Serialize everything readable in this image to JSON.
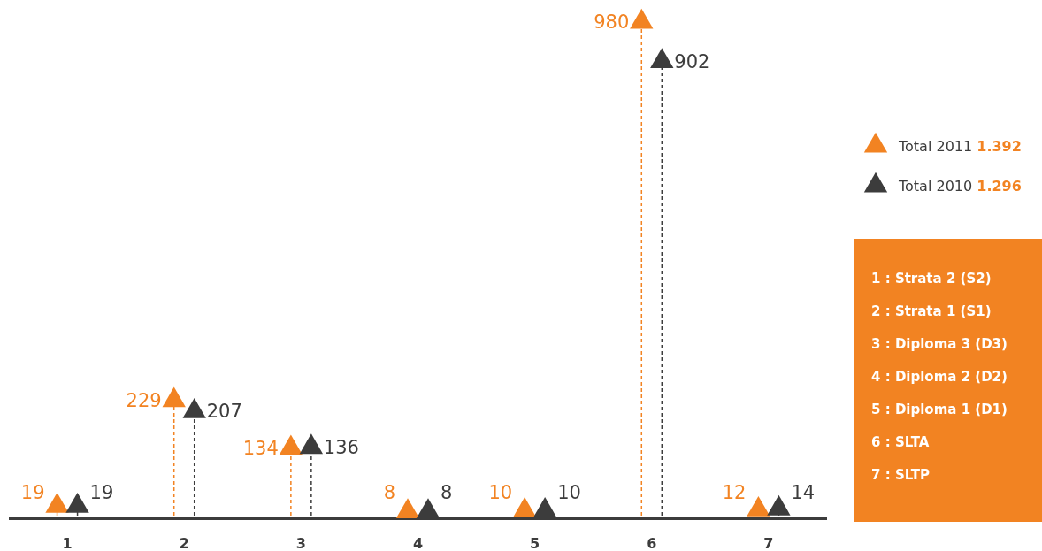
{
  "chart_data": {
    "type": "lollipop",
    "categories": [
      "1",
      "2",
      "3",
      "4",
      "5",
      "6",
      "7"
    ],
    "series": [
      {
        "name": "Total 2011 1.392",
        "color": "#f28322",
        "values": [
          19,
          229,
          134,
          8,
          10,
          980,
          12
        ]
      },
      {
        "name": "Total 2010 1.296",
        "color": "#3c3c3c",
        "values": [
          19,
          207,
          136,
          8,
          10,
          902,
          14
        ]
      }
    ],
    "tick_labels": "x",
    "data_labels": true,
    "marker": "triangle",
    "line_style": "dashed",
    "legend": "right",
    "annotations": [
      "1 : Strata 2 (S2)",
      "2 : Strata 1 (S1)",
      "3 : Diploma 3 (D3)",
      "4 : Diploma 2 (D2)",
      "5 : Diploma 1 (D1)",
      "6 : SLTA",
      "7 : SLTP"
    ]
  }
}
